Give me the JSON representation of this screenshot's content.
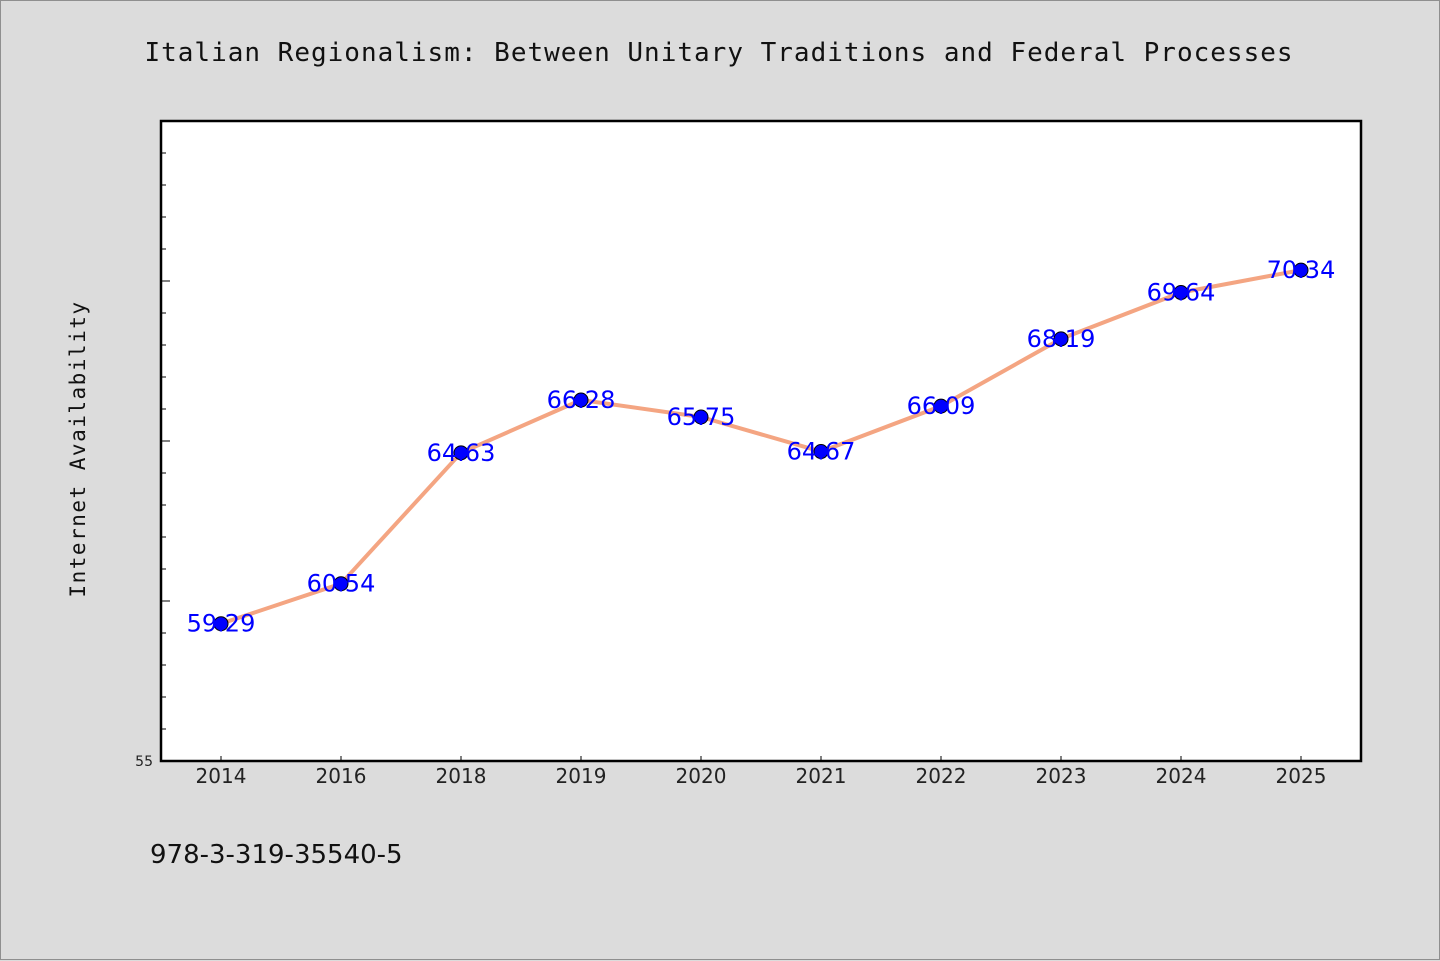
{
  "chart_data": {
    "type": "line",
    "title": "Italian Regionalism: Between Unitary Traditions and Federal Processes",
    "xlabel": "",
    "ylabel": "Internet Availability",
    "categories": [
      "2014",
      "2016",
      "2018",
      "2019",
      "2020",
      "2021",
      "2022",
      "2023",
      "2024",
      "2025"
    ],
    "series": [
      {
        "values": [
          59.29,
          60.54,
          64.63,
          66.28,
          65.75,
          64.67,
          66.09,
          68.19,
          69.64,
          70.34
        ],
        "data_labels": [
          "59.29",
          "60.54",
          "64.63",
          "66.28",
          "65.75",
          "64.67",
          "66.09",
          "68.19",
          "69.64",
          "70.34"
        ],
        "line_color": "#f4a582",
        "marker_color": "#0000ff"
      }
    ],
    "ylim": [
      55,
      75
    ],
    "ytick_labels": [
      {
        "value": 55,
        "label": "55"
      }
    ],
    "minor_tick_step": 1,
    "major_tick_step": 5,
    "grid": false,
    "legend": "none"
  },
  "footer": {
    "isbn": "978-3-319-35540-5"
  },
  "colors": {
    "background": "#dcdcdc",
    "plot_background": "#ffffff",
    "data_label": "#0000ff"
  }
}
